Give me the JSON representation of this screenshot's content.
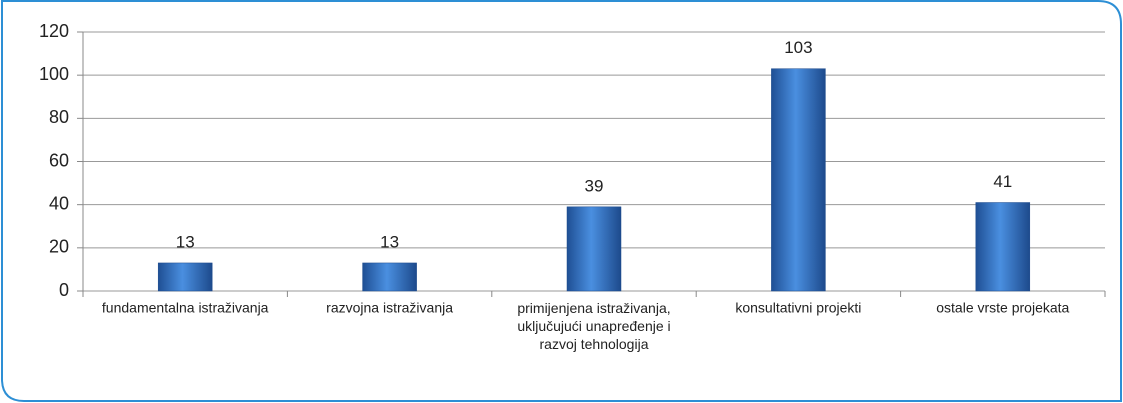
{
  "chart_data": {
    "type": "bar",
    "categories": [
      "fundamentalna istraživanja",
      "razvojna istraživanja",
      "primijenjena istraživanja, uključujući unapređenje i razvoj tehnologija",
      "konsultativni projekti",
      "ostale vrste projekata"
    ],
    "values": [
      13,
      13,
      39,
      103,
      41
    ],
    "color": "#3a78c9",
    "ylim": [
      0,
      120
    ],
    "yticks": [
      0,
      20,
      40,
      60,
      80,
      100,
      120
    ],
    "grid": true
  }
}
